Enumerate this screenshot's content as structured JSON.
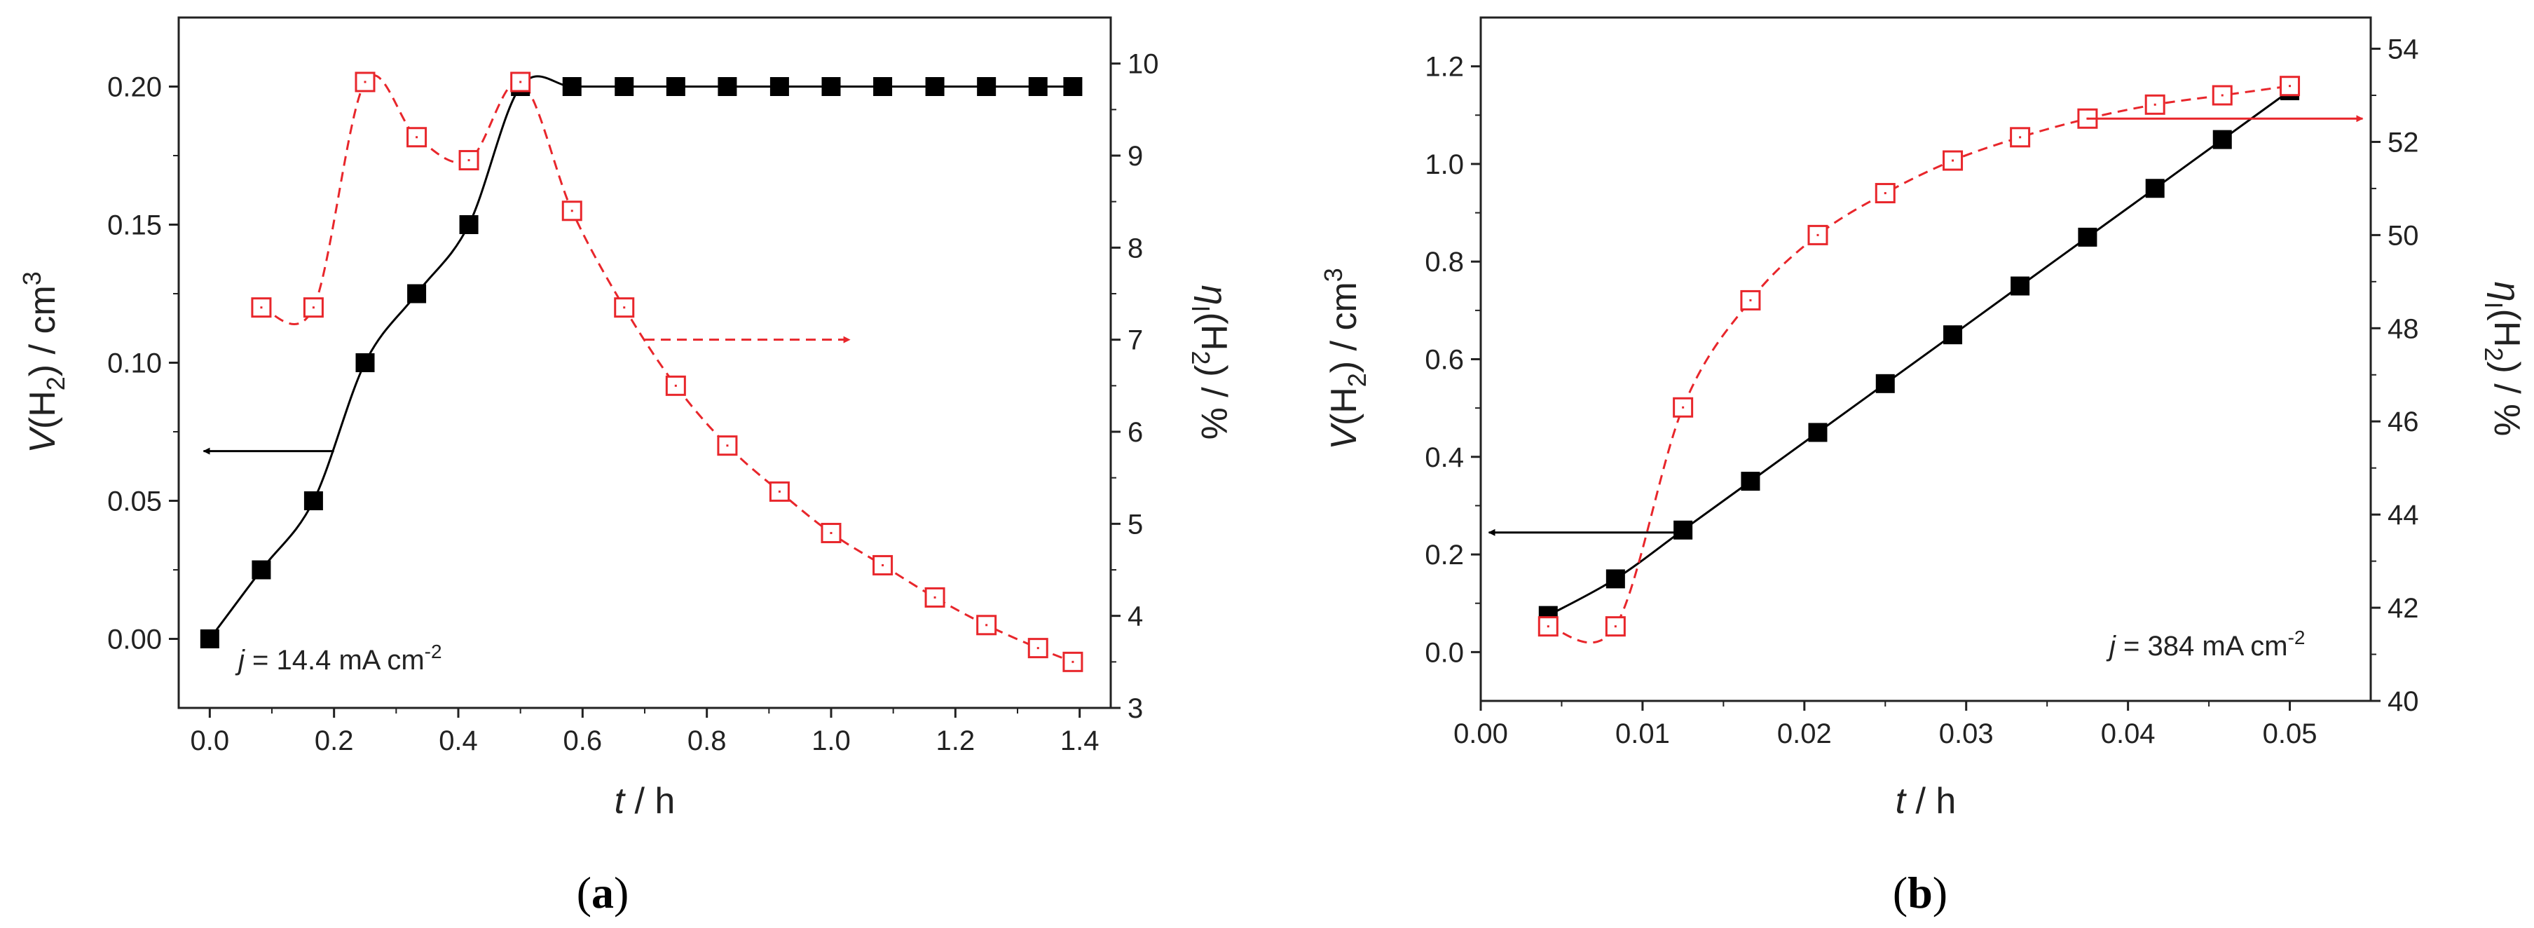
{
  "colors": {
    "black_series": "#000000",
    "red_series": "#e8262b",
    "axis": "#222222"
  },
  "panels": [
    {
      "panel_label_prefix": "(",
      "panel_label_letter": "a",
      "panel_label_suffix": ")",
      "annotation": {
        "prefix": "j",
        "text": " = 14.4 mA cm",
        "sup": "-2"
      },
      "xlabel": {
        "var": "t",
        "unit": " / h"
      },
      "ylabel_left": {
        "var": "V",
        "rest": "(H",
        "sub": "2",
        "mid": ") / cm",
        "sup": "3"
      },
      "ylabel_right": {
        "var": "η",
        "sub": "I",
        "rest": "(H",
        "sub2": "2",
        "tail": ") / %"
      }
    },
    {
      "panel_label_prefix": "(",
      "panel_label_letter": "b",
      "panel_label_suffix": ")",
      "annotation": {
        "prefix": "j",
        "text": " = 384 mA cm",
        "sup": "-2"
      },
      "xlabel": {
        "var": "t",
        "unit": " / h"
      },
      "ylabel_left": {
        "var": "V",
        "rest": "(H",
        "sub": "2",
        "mid": ") / cm",
        "sup": "3"
      },
      "ylabel_right": {
        "var": "η",
        "sub": "I",
        "rest": "(H",
        "sub2": "2",
        "tail": ") / %"
      }
    }
  ],
  "chart_data": [
    {
      "type": "scatter",
      "title": "",
      "xlabel": "t / h",
      "ylabel": "V(H2) / cm3",
      "y2label": "ηI(H2) / %",
      "xlim": [
        -0.05,
        1.45
      ],
      "ylim": [
        -0.025,
        0.225
      ],
      "y2lim": [
        3,
        10.5
      ],
      "xticks": [
        0.0,
        0.2,
        0.4,
        0.6,
        0.8,
        1.0,
        1.2,
        1.4
      ],
      "xtick_labels": [
        "0.0",
        "0.2",
        "0.4",
        "0.6",
        "0.8",
        "1.0",
        "1.2",
        "1.4"
      ],
      "yticks": [
        0.0,
        0.05,
        0.1,
        0.15,
        0.2
      ],
      "ytick_labels": [
        "0.00",
        "0.05",
        "0.10",
        "0.15",
        "0.20"
      ],
      "y2ticks": [
        3,
        4,
        5,
        6,
        7,
        8,
        9,
        10
      ],
      "y2tick_labels": [
        "3",
        "4",
        "5",
        "6",
        "7",
        "8",
        "9",
        "10"
      ],
      "series": [
        {
          "name": "V(H2)",
          "axis": "left",
          "marker": "filled-square",
          "line": "solid",
          "x": [
            0.0,
            0.083,
            0.167,
            0.25,
            0.333,
            0.417,
            0.5,
            0.583,
            0.667,
            0.75,
            0.833,
            0.917,
            1.0,
            1.083,
            1.167,
            1.25,
            1.333,
            1.389
          ],
          "values": [
            0.0,
            0.025,
            0.05,
            0.1,
            0.125,
            0.15,
            0.2,
            0.2,
            0.2,
            0.2,
            0.2,
            0.2,
            0.2,
            0.2,
            0.2,
            0.2,
            0.2,
            0.2
          ]
        },
        {
          "name": "ηI(H2)",
          "axis": "right",
          "marker": "open-square",
          "line": "dashed",
          "x": [
            0.083,
            0.167,
            0.25,
            0.333,
            0.417,
            0.5,
            0.583,
            0.667,
            0.75,
            0.833,
            0.917,
            1.0,
            1.083,
            1.167,
            1.25,
            1.333,
            1.389
          ],
          "values": [
            7.35,
            7.35,
            9.8,
            9.2,
            8.95,
            9.8,
            8.4,
            7.35,
            6.5,
            5.85,
            5.35,
            4.9,
            4.55,
            4.2,
            3.9,
            3.65,
            3.5
          ]
        }
      ],
      "arrows": [
        {
          "points_to": "left",
          "from": [
            0.2,
            0.068
          ],
          "to": [
            -0.01,
            0.068
          ]
        },
        {
          "points_to": "right",
          "from_y2": [
            0.7,
            7.0
          ],
          "to_y2": [
            1.03,
            7.0
          ]
        }
      ]
    },
    {
      "type": "scatter",
      "title": "",
      "xlabel": "t / h",
      "ylabel": "V(H2) / cm3",
      "y2label": "ηI(H2) / %",
      "xlim": [
        0.0,
        0.055
      ],
      "ylim": [
        -0.1,
        1.3
      ],
      "y2lim": [
        40,
        54.67
      ],
      "xticks": [
        0.0,
        0.01,
        0.02,
        0.03,
        0.04,
        0.05
      ],
      "xtick_labels": [
        "0.00",
        "0.01",
        "0.02",
        "0.03",
        "0.04",
        "0.05"
      ],
      "yticks": [
        0.0,
        0.2,
        0.4,
        0.6,
        0.8,
        1.0,
        1.2
      ],
      "ytick_labels": [
        "0.0",
        "0.2",
        "0.4",
        "0.6",
        "0.8",
        "1.0",
        "1.2"
      ],
      "y2ticks": [
        40,
        42,
        44,
        46,
        48,
        50,
        52,
        54
      ],
      "y2tick_labels": [
        "40",
        "42",
        "44",
        "46",
        "48",
        "50",
        "52",
        "54"
      ],
      "series": [
        {
          "name": "V(H2)",
          "axis": "left",
          "marker": "filled-square",
          "line": "solid",
          "x": [
            0.00417,
            0.00833,
            0.0125,
            0.01667,
            0.02083,
            0.025,
            0.02917,
            0.03333,
            0.0375,
            0.04167,
            0.04583,
            0.05
          ],
          "values": [
            0.075,
            0.15,
            0.25,
            0.35,
            0.45,
            0.55,
            0.65,
            0.75,
            0.85,
            0.95,
            1.05,
            1.15
          ]
        },
        {
          "name": "ηI(H2)",
          "axis": "right",
          "marker": "open-square",
          "line": "dashed",
          "x": [
            0.00417,
            0.00833,
            0.0125,
            0.01667,
            0.02083,
            0.025,
            0.02917,
            0.03333,
            0.0375,
            0.04167,
            0.04583,
            0.05
          ],
          "values": [
            41.6,
            41.6,
            46.3,
            48.6,
            50.0,
            50.9,
            51.6,
            52.1,
            52.5,
            52.8,
            53.0,
            53.2
          ]
        }
      ],
      "arrows": [
        {
          "points_to": "left",
          "from": [
            0.0125,
            0.245
          ],
          "to": [
            0.0005,
            0.245
          ]
        },
        {
          "points_to": "right",
          "from_y2": [
            0.0375,
            52.5
          ],
          "to_y2": [
            0.0545,
            52.5
          ]
        }
      ]
    }
  ]
}
